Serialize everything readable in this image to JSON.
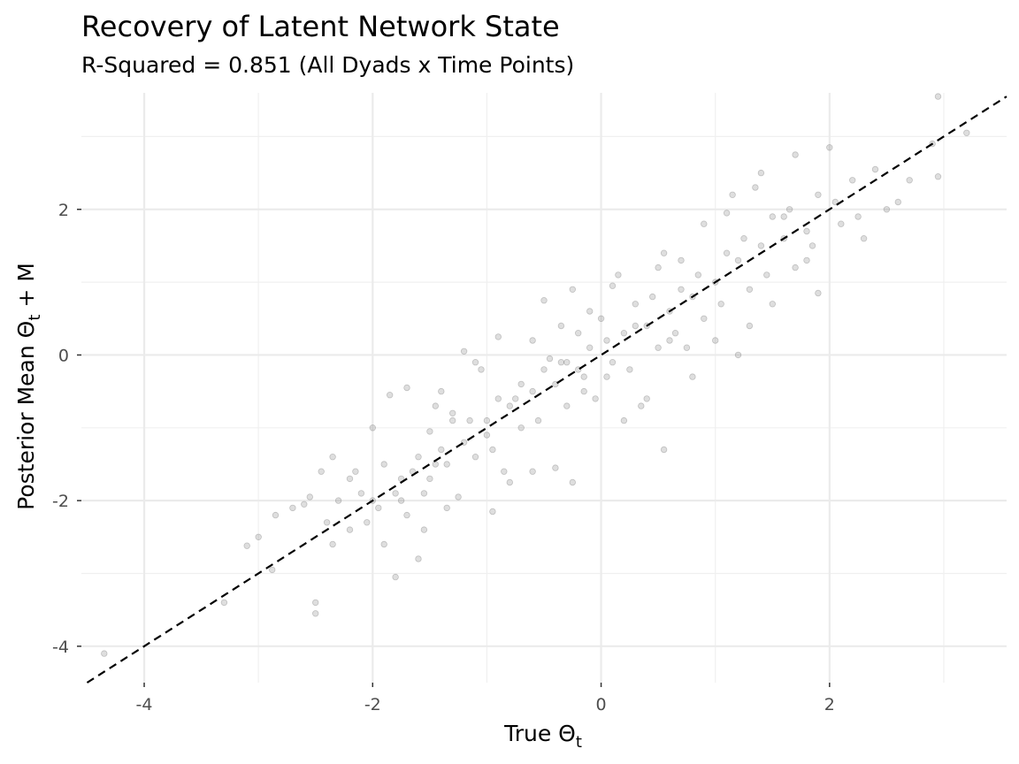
{
  "chart_data": {
    "type": "scatter",
    "title": "Recovery of Latent Network State",
    "subtitle": "R-Squared = 0.851 (All Dyads x Time Points)",
    "xlabel": {
      "text": "True Θ",
      "sub": "t"
    },
    "ylabel": {
      "text": "Posterior Mean Θ",
      "sub": "t",
      "suffix": " + M"
    },
    "xlim": [
      -4.55,
      3.55
    ],
    "ylim": [
      -4.5,
      3.6
    ],
    "x_ticks": [
      -4,
      -2,
      0,
      2
    ],
    "y_ticks": [
      -4,
      -2,
      0,
      2
    ],
    "x_tick_labels": [
      "-4",
      "-2",
      "0",
      "2"
    ],
    "y_tick_labels": [
      "-4",
      "-2",
      "0",
      "2"
    ],
    "grid": true,
    "reference_line": {
      "type": "identity",
      "slope": 1,
      "intercept": 0,
      "style": "dashed",
      "color": "#000000"
    },
    "point_color": "#5a5a5a",
    "point_opacity": 0.2,
    "points": [
      [
        -4.35,
        -4.1
      ],
      [
        -3.3,
        -3.4
      ],
      [
        -3.1,
        -2.62
      ],
      [
        -2.88,
        -2.95
      ],
      [
        -2.85,
        -2.2
      ],
      [
        -2.7,
        -2.1
      ],
      [
        -2.6,
        -2.05
      ],
      [
        -2.55,
        -1.95
      ],
      [
        -2.5,
        -3.4
      ],
      [
        -2.5,
        -3.55
      ],
      [
        -2.45,
        -1.6
      ],
      [
        -2.4,
        -2.3
      ],
      [
        -2.35,
        -2.6
      ],
      [
        -2.35,
        -1.4
      ],
      [
        -3.0,
        -2.5
      ],
      [
        -2.2,
        -1.7
      ],
      [
        -2.2,
        -2.4
      ],
      [
        -2.1,
        -1.9
      ],
      [
        -2.05,
        -2.3
      ],
      [
        -2.0,
        -1.0
      ],
      [
        -1.9,
        -2.6
      ],
      [
        -1.85,
        -0.55
      ],
      [
        -1.8,
        -3.05
      ],
      [
        -1.75,
        -2.0
      ],
      [
        -1.7,
        -0.45
      ],
      [
        -1.65,
        -1.6
      ],
      [
        -1.6,
        -2.8
      ],
      [
        -1.55,
        -2.4
      ],
      [
        -1.5,
        -1.05
      ],
      [
        -1.45,
        -1.5
      ],
      [
        -1.4,
        -0.5
      ],
      [
        -1.35,
        -2.1
      ],
      [
        -1.3,
        -0.9
      ],
      [
        -1.25,
        -1.95
      ],
      [
        -1.2,
        0.05
      ],
      [
        -1.1,
        -0.1
      ],
      [
        -1.0,
        -0.9
      ],
      [
        -0.95,
        -2.15
      ],
      [
        -0.9,
        0.25
      ],
      [
        -0.8,
        -1.75
      ],
      [
        -0.7,
        -0.4
      ],
      [
        -0.6,
        -1.6
      ],
      [
        -0.5,
        0.75
      ],
      [
        -0.45,
        -0.05
      ],
      [
        -0.4,
        -1.55
      ],
      [
        -0.35,
        0.4
      ],
      [
        -0.3,
        -0.1
      ],
      [
        -0.25,
        -1.75
      ],
      [
        -0.2,
        0.3
      ],
      [
        -0.15,
        -0.3
      ],
      [
        -0.1,
        0.6
      ],
      [
        -0.05,
        -0.6
      ],
      [
        0.0,
        0.5
      ],
      [
        0.05,
        -0.3
      ],
      [
        0.1,
        0.95
      ],
      [
        0.2,
        -0.9
      ],
      [
        0.3,
        0.4
      ],
      [
        0.4,
        -0.6
      ],
      [
        0.5,
        1.2
      ],
      [
        0.55,
        -1.3
      ],
      [
        0.6,
        0.2
      ],
      [
        0.7,
        1.3
      ],
      [
        0.8,
        -0.3
      ],
      [
        0.9,
        1.8
      ],
      [
        1.0,
        0.2
      ],
      [
        1.1,
        1.95
      ],
      [
        1.2,
        0.0
      ],
      [
        1.3,
        0.4
      ],
      [
        1.4,
        2.5
      ],
      [
        1.5,
        0.7
      ],
      [
        1.6,
        1.9
      ],
      [
        1.7,
        2.75
      ],
      [
        1.8,
        1.3
      ],
      [
        1.9,
        0.85
      ],
      [
        2.0,
        2.85
      ],
      [
        2.1,
        1.8
      ],
      [
        2.2,
        2.4
      ],
      [
        2.3,
        1.6
      ],
      [
        2.4,
        2.55
      ],
      [
        2.5,
        2.0
      ],
      [
        2.6,
        2.1
      ],
      [
        2.7,
        2.4
      ],
      [
        2.9,
        2.9
      ],
      [
        2.95,
        3.55
      ],
      [
        2.95,
        2.45
      ],
      [
        3.2,
        3.05
      ],
      [
        -2.0,
        -2.0
      ],
      [
        -1.8,
        -1.9
      ],
      [
        -1.6,
        -1.4
      ],
      [
        -1.4,
        -1.3
      ],
      [
        -1.2,
        -1.2
      ],
      [
        -1.0,
        -1.1
      ],
      [
        -0.8,
        -0.7
      ],
      [
        -0.6,
        -0.5
      ],
      [
        -0.4,
        -0.4
      ],
      [
        -0.2,
        -0.2
      ],
      [
        0.2,
        0.3
      ],
      [
        0.4,
        0.4
      ],
      [
        0.6,
        0.6
      ],
      [
        0.8,
        0.8
      ],
      [
        1.0,
        1.0
      ],
      [
        1.2,
        1.3
      ],
      [
        1.4,
        1.5
      ],
      [
        1.6,
        1.6
      ],
      [
        1.8,
        1.7
      ],
      [
        -1.9,
        -1.5
      ],
      [
        -1.7,
        -2.2
      ],
      [
        -1.5,
        -1.7
      ],
      [
        -1.3,
        -0.8
      ],
      [
        -1.1,
        -1.4
      ],
      [
        -0.9,
        -0.6
      ],
      [
        -0.7,
        -1.0
      ],
      [
        -0.5,
        -0.2
      ],
      [
        -0.3,
        -0.7
      ],
      [
        -0.1,
        0.1
      ],
      [
        0.1,
        -0.1
      ],
      [
        0.3,
        0.7
      ],
      [
        0.5,
        0.1
      ],
      [
        0.7,
        0.9
      ],
      [
        0.9,
        0.5
      ],
      [
        1.1,
        1.4
      ],
      [
        1.3,
        0.9
      ],
      [
        1.5,
        1.9
      ],
      [
        1.7,
        1.2
      ],
      [
        1.9,
        2.2
      ],
      [
        -2.3,
        -2.0
      ],
      [
        -2.15,
        -1.6
      ],
      [
        -1.95,
        -2.1
      ],
      [
        -1.75,
        -1.7
      ],
      [
        -1.55,
        -1.9
      ],
      [
        -1.35,
        -1.5
      ],
      [
        -1.15,
        -0.9
      ],
      [
        -0.95,
        -1.3
      ],
      [
        -0.75,
        -0.6
      ],
      [
        -0.55,
        -0.9
      ],
      [
        -0.35,
        -0.1
      ],
      [
        -0.15,
        -0.5
      ],
      [
        0.05,
        0.2
      ],
      [
        0.25,
        -0.2
      ],
      [
        0.45,
        0.8
      ],
      [
        0.65,
        0.3
      ],
      [
        0.85,
        1.1
      ],
      [
        1.05,
        0.7
      ],
      [
        1.25,
        1.6
      ],
      [
        1.45,
        1.1
      ],
      [
        1.65,
        2.0
      ],
      [
        1.85,
        1.5
      ],
      [
        2.05,
        2.1
      ],
      [
        2.25,
        1.9
      ],
      [
        -0.6,
        0.2
      ],
      [
        0.15,
        1.1
      ],
      [
        -0.25,
        0.9
      ],
      [
        0.35,
        -0.7
      ],
      [
        0.75,
        0.1
      ],
      [
        1.15,
        2.2
      ],
      [
        -1.05,
        -0.2
      ],
      [
        -1.45,
        -0.7
      ],
      [
        -0.85,
        -1.6
      ],
      [
        0.55,
        1.4
      ],
      [
        1.35,
        2.3
      ]
    ]
  }
}
